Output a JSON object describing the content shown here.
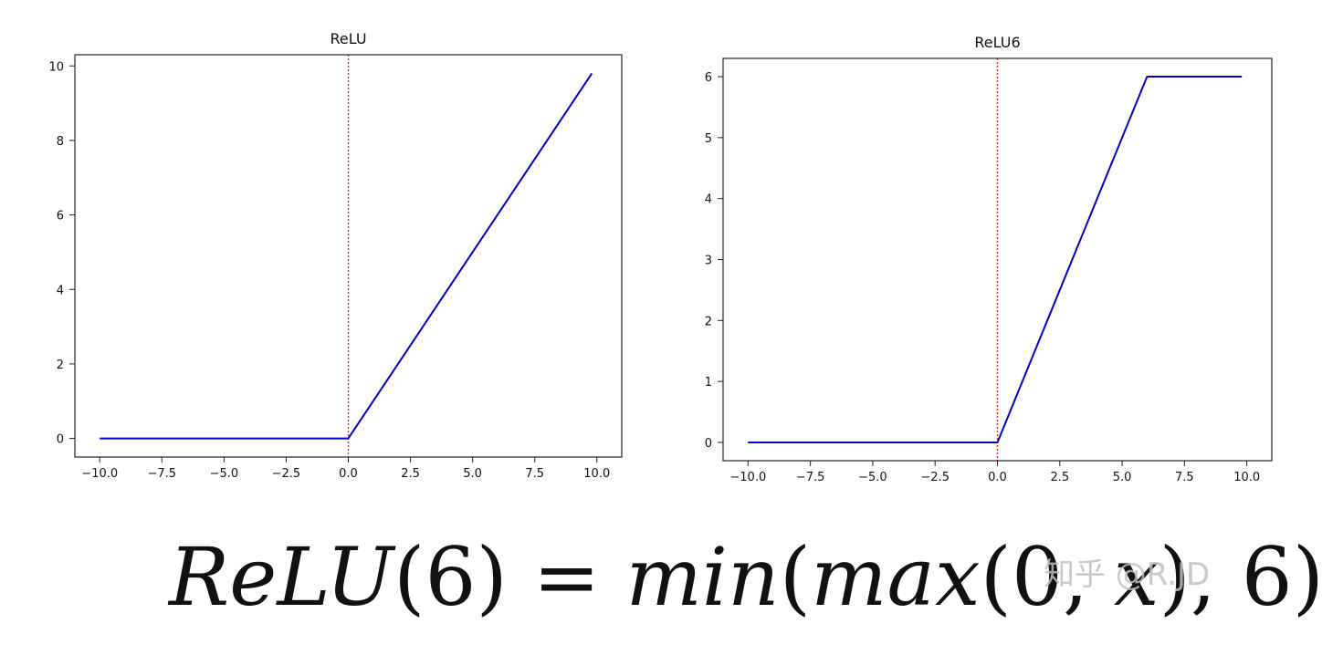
{
  "chart_data": [
    {
      "type": "line",
      "title": "ReLU",
      "xlabel": "",
      "ylabel": "",
      "xlim": [
        -11,
        11
      ],
      "ylim": [
        -0.5,
        10.3
      ],
      "xticks": [
        -10.0,
        -7.5,
        -5.0,
        -2.5,
        0.0,
        2.5,
        5.0,
        7.5,
        10.0
      ],
      "xtick_labels": [
        "−10.0",
        "−7.5",
        "−5.0",
        "−2.5",
        "0.0",
        "2.5",
        "5.0",
        "7.5",
        "10.0"
      ],
      "yticks": [
        0,
        2,
        4,
        6,
        8,
        10
      ],
      "ytick_labels": [
        "0",
        "2",
        "4",
        "6",
        "8",
        "10"
      ],
      "grid": false,
      "series": [
        {
          "x": [
            -10,
            0,
            9.8
          ],
          "y": [
            0,
            0,
            9.8
          ],
          "color": "#0000cc",
          "style": "solid"
        }
      ],
      "vlines": [
        {
          "x": 0,
          "color": "#e03030",
          "style": "dotted"
        }
      ]
    },
    {
      "type": "line",
      "title": "ReLU6",
      "xlabel": "",
      "ylabel": "",
      "xlim": [
        -11,
        11
      ],
      "ylim": [
        -0.3,
        6.3
      ],
      "xticks": [
        -10.0,
        -7.5,
        -5.0,
        -2.5,
        0.0,
        2.5,
        5.0,
        7.5,
        10.0
      ],
      "xtick_labels": [
        "−10.0",
        "−7.5",
        "−5.0",
        "−2.5",
        "0.0",
        "2.5",
        "5.0",
        "7.5",
        "10.0"
      ],
      "yticks": [
        0,
        1,
        2,
        3,
        4,
        5,
        6
      ],
      "ytick_labels": [
        "0",
        "1",
        "2",
        "3",
        "4",
        "5",
        "6"
      ],
      "grid": false,
      "series": [
        {
          "x": [
            -10,
            0,
            6,
            9.8
          ],
          "y": [
            0,
            0,
            6,
            6
          ],
          "color": "#0000cc",
          "style": "solid"
        }
      ],
      "vlines": [
        {
          "x": 0,
          "color": "#e03030",
          "style": "dotted"
        }
      ]
    }
  ],
  "formula": {
    "p1": "ReLU",
    "p2": "(6) = ",
    "p3": "min",
    "p4": "(",
    "p5": "max",
    "p6": "(0, ",
    "p7": "x",
    "p8": "), 6)"
  },
  "watermark": "知乎 @R.JD"
}
